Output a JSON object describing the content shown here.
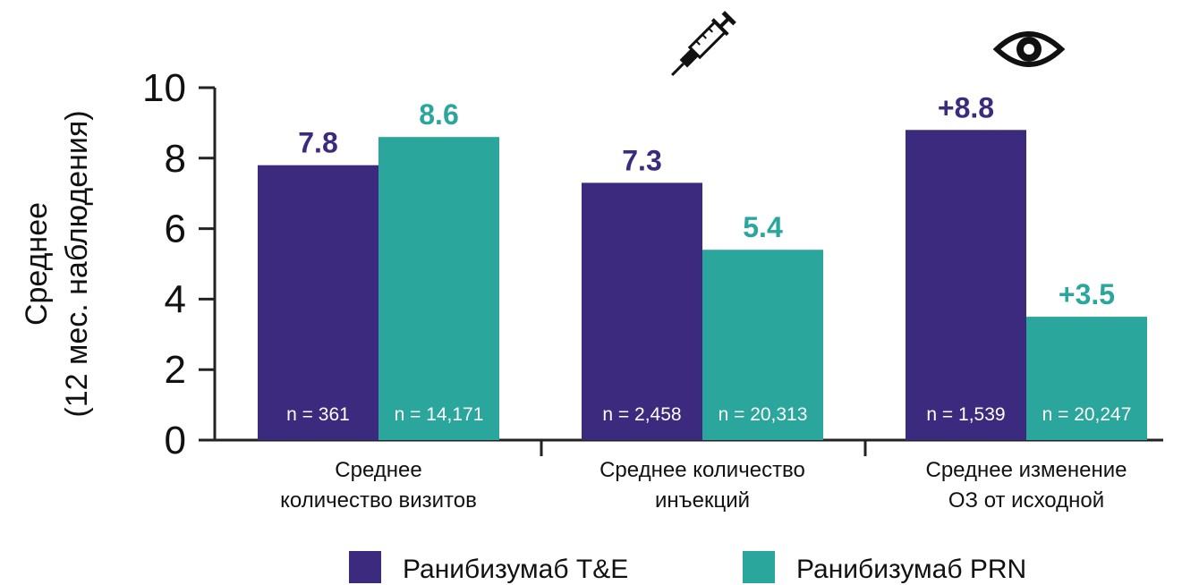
{
  "chart_data": {
    "type": "bar",
    "ylabel_line1": "Среднее",
    "ylabel_line2": "(12 мес. наблюдения)",
    "ylim": [
      0,
      10
    ],
    "yticks": [
      "0",
      "2",
      "4",
      "6",
      "8",
      "10"
    ],
    "categories": [
      [
        "Среднее",
        "количество визитов"
      ],
      [
        "Среднее количество",
        "инъекций"
      ],
      [
        "Среднее изменение",
        "ОЗ от исходной"
      ]
    ],
    "series": [
      {
        "name": "Ранибизумаб T&E",
        "color": "#3c2a7e",
        "values": [
          7.8,
          7.3,
          8.8
        ],
        "value_labels": [
          "7.8",
          "7.3",
          "+8.8"
        ],
        "n_labels": [
          "n = 361",
          "n = 2,458",
          "n = 1,539"
        ]
      },
      {
        "name": "Ранибизумаб PRN",
        "color": "#2aa69c",
        "values": [
          8.6,
          5.4,
          3.5
        ],
        "value_labels": [
          "8.6",
          "5.4",
          "+3.5"
        ],
        "n_labels": [
          "n = 14,171",
          "n = 20,313",
          "n = 20,247"
        ]
      }
    ],
    "icons": [
      "syringe-icon",
      "eye-icon"
    ],
    "legend_position": "bottom",
    "grid": false
  }
}
